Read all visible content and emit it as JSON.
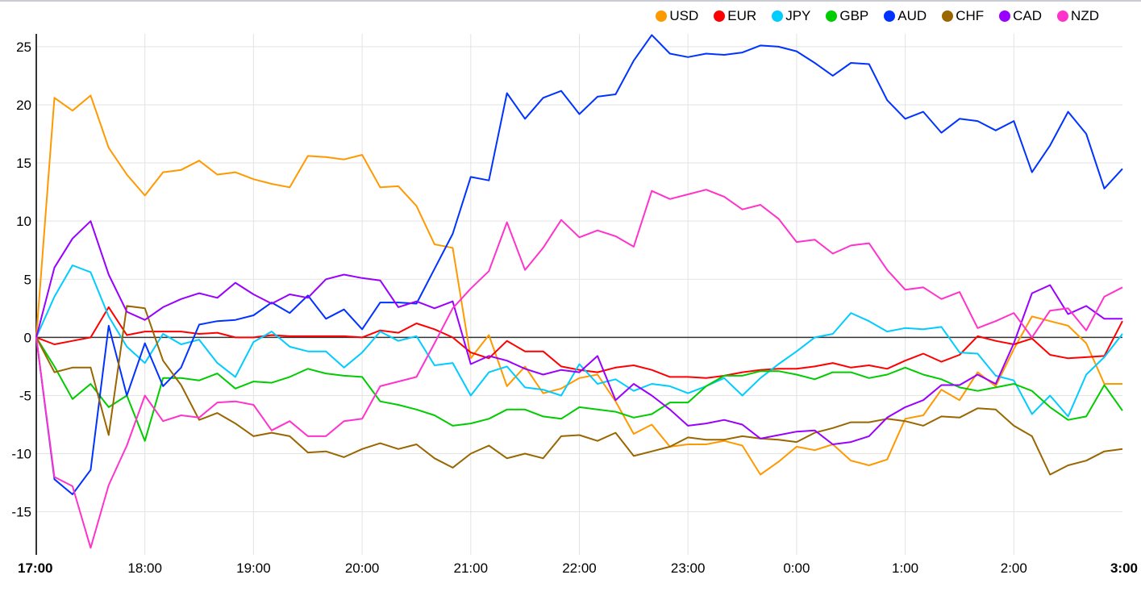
{
  "chart_data": {
    "type": "line",
    "title": "",
    "xlabel": "",
    "ylabel": "",
    "ylim": [
      -18.7,
      26.1
    ],
    "xlim_minutes": [
      0,
      600
    ],
    "step_minutes": 10,
    "grid": true,
    "legend_position": "top-right",
    "yticks": [
      -15,
      -10,
      -5,
      0,
      5,
      10,
      15,
      20,
      25
    ],
    "ytick_labels": [
      "-15",
      "-10",
      "-5",
      "0",
      "5",
      "10",
      "15",
      "20",
      "25"
    ],
    "xticks": [
      {
        "label": "17:00",
        "minute": 0,
        "bold": true
      },
      {
        "label": "18:00",
        "minute": 60
      },
      {
        "label": "19:00",
        "minute": 120
      },
      {
        "label": "20:00",
        "minute": 180
      },
      {
        "label": "21:00",
        "minute": 240
      },
      {
        "label": "22:00",
        "minute": 300
      },
      {
        "label": "23:00",
        "minute": 360
      },
      {
        "label": "0:00",
        "minute": 420
      },
      {
        "label": "1:00",
        "minute": 480
      },
      {
        "label": "2:00",
        "minute": 540
      },
      {
        "label": "3:00",
        "minute": 600,
        "bold": true
      }
    ],
    "series": [
      {
        "name": "USD",
        "color": "#ff9900",
        "values": [
          0,
          20.6,
          19.5,
          20.8,
          16.3,
          14,
          12.2,
          14.2,
          14.4,
          15.2,
          14,
          14.2,
          13.6,
          13.2,
          12.9,
          15.6,
          15.5,
          15.3,
          15.7,
          12.9,
          13,
          11.3,
          8,
          7.7,
          -1.8,
          0.2,
          -4.2,
          -2.5,
          -4.8,
          -4.4,
          -3.5,
          -3.2,
          -5.5,
          -8.3,
          -7.5,
          -9.4,
          -9.2,
          -9.2,
          -8.9,
          -9.3,
          -11.8,
          -10.7,
          -9.4,
          -9.7,
          -9.2,
          -10.6,
          -11,
          -10.5,
          -7,
          -6.7,
          -4.5,
          -5.4,
          -3,
          -4.2,
          -1,
          1.8,
          1.4,
          1,
          -0.5,
          -4,
          -4
        ]
      },
      {
        "name": "EUR",
        "color": "#ff0000",
        "values": [
          0,
          -0.6,
          -0.3,
          0,
          2.6,
          0.2,
          0.5,
          0.5,
          0.5,
          0.3,
          0.4,
          0,
          0,
          0.2,
          0.1,
          0.1,
          0.1,
          0.1,
          0,
          0.6,
          0.4,
          1.2,
          0.7,
          0,
          -1.3,
          -1.8,
          -0.3,
          -1.2,
          -1.2,
          -2.5,
          -2.8,
          -3,
          -2.6,
          -2.4,
          -2.8,
          -3.4,
          -3.4,
          -3.5,
          -3.3,
          -3,
          -2.8,
          -2.7,
          -2.7,
          -2.5,
          -2.2,
          -2.6,
          -2.4,
          -2.7,
          -2,
          -1.4,
          -2.1,
          -1.5,
          0.1,
          -0.3,
          -0.6,
          -0.1,
          -1.5,
          -1.8,
          -1.7,
          -1.6,
          1.4
        ]
      },
      {
        "name": "JPY",
        "color": "#00ccff",
        "values": [
          0,
          3.5,
          6.2,
          5.6,
          1.8,
          -0.8,
          -2.2,
          0.3,
          -0.6,
          -0.2,
          -2.2,
          -3.4,
          -0.4,
          0.5,
          -0.8,
          -1.2,
          -1.2,
          -2.6,
          -1.3,
          0.5,
          -0.3,
          0.1,
          -2.4,
          -2.2,
          -5,
          -3,
          -2.5,
          -4.3,
          -4.5,
          -5,
          -2.3,
          -4,
          -3.6,
          -4.6,
          -4,
          -4.2,
          -4.8,
          -4.2,
          -3.5,
          -5,
          -3.5,
          -2.3,
          -1.2,
          0,
          0.3,
          2.1,
          1.4,
          0.5,
          0.8,
          0.7,
          0.9,
          -1.3,
          -1.4,
          -3.3,
          -3.7,
          -6.6,
          -5,
          -6.8,
          -3.2,
          -1.7,
          0.3
        ]
      },
      {
        "name": "GBP",
        "color": "#00cc00",
        "values": [
          0,
          -2.5,
          -5.3,
          -4,
          -6,
          -5,
          -8.9,
          -3.5,
          -3.5,
          -3.7,
          -3.1,
          -4.4,
          -3.8,
          -3.9,
          -3.4,
          -2.7,
          -3.1,
          -3.3,
          -3.4,
          -5.5,
          -5.8,
          -6.2,
          -6.7,
          -7.6,
          -7.4,
          -7,
          -6.2,
          -6.2,
          -6.8,
          -7,
          -6,
          -6.2,
          -6.4,
          -6.9,
          -6.6,
          -5.6,
          -5.6,
          -4.2,
          -3.3,
          -3.3,
          -2.9,
          -2.9,
          -3.2,
          -3.6,
          -3,
          -3,
          -3.5,
          -3.2,
          -2.6,
          -3.2,
          -3.6,
          -4.3,
          -4.6,
          -4.3,
          -4,
          -4.6,
          -6,
          -7.1,
          -6.8,
          -4.1,
          -6.3
        ]
      },
      {
        "name": "AUD",
        "color": "#0033ff",
        "values": [
          0,
          -12.2,
          -13.5,
          -11.4,
          1,
          -5,
          -0.5,
          -4.2,
          -2.6,
          1.1,
          1.4,
          1.5,
          1.9,
          3,
          2.1,
          3.6,
          1.6,
          2.4,
          0.7,
          3,
          3,
          2.9,
          5.9,
          8.9,
          13.8,
          13.5,
          21,
          18.8,
          20.6,
          21.2,
          19.2,
          20.7,
          20.9,
          23.8,
          26,
          24.4,
          24.1,
          24.4,
          24.3,
          24.5,
          25.1,
          25,
          24.6,
          23.6,
          22.5,
          23.6,
          23.5,
          20.4,
          18.8,
          19.4,
          17.6,
          18.8,
          18.6,
          17.8,
          18.6,
          14.2,
          16.5,
          19.4,
          17.5,
          12.8,
          14.5
        ]
      },
      {
        "name": "CHF",
        "color": "#996600",
        "values": [
          0,
          -3,
          -2.6,
          -2.6,
          -8.4,
          2.7,
          2.5,
          -2,
          -4.1,
          -7.1,
          -6.5,
          -7.4,
          -8.5,
          -8.2,
          -8.5,
          -9.9,
          -9.8,
          -10.3,
          -9.6,
          -9.1,
          -9.6,
          -9.2,
          -10.4,
          -11.2,
          -10,
          -9.3,
          -10.4,
          -10,
          -10.4,
          -8.5,
          -8.4,
          -8.9,
          -8.2,
          -10.2,
          -9.8,
          -9.4,
          -8.6,
          -8.8,
          -8.8,
          -8.5,
          -8.7,
          -8.8,
          -9,
          -8.2,
          -7.8,
          -7.3,
          -7.3,
          -7,
          -7.2,
          -7.6,
          -6.8,
          -6.9,
          -6.1,
          -6.2,
          -7.6,
          -8.5,
          -11.8,
          -11,
          -10.6,
          -9.8,
          -9.6
        ]
      },
      {
        "name": "CAD",
        "color": "#9900ff",
        "values": [
          0,
          6,
          8.5,
          10,
          5.4,
          2.2,
          1.5,
          2.6,
          3.3,
          3.8,
          3.4,
          4.7,
          3.7,
          2.9,
          3.7,
          3.4,
          5,
          5.4,
          5.1,
          4.9,
          2.6,
          3.1,
          2.5,
          3.1,
          -2.3,
          -1.6,
          -2,
          -2.7,
          -3.2,
          -2.8,
          -3,
          -1.6,
          -5.4,
          -4,
          -5,
          -6.2,
          -7.6,
          -7.4,
          -7.1,
          -7.5,
          -8.7,
          -8.4,
          -8.1,
          -8,
          -9.2,
          -9,
          -8.5,
          -6.9,
          -6,
          -5.4,
          -4.1,
          -4.1,
          -3.2,
          -4,
          -0.5,
          3.8,
          4.5,
          2,
          2.7,
          1.6,
          1.6
        ]
      },
      {
        "name": "NZD",
        "color": "#ff33cc",
        "values": [
          0,
          -12,
          -12.8,
          -18.1,
          -12.7,
          -9.3,
          -5,
          -7.2,
          -6.7,
          -6.9,
          -5.6,
          -5.5,
          -5.8,
          -8,
          -7.2,
          -8.5,
          -8.5,
          -7.2,
          -7,
          -4.2,
          -3.8,
          -3.4,
          -0.5,
          2.5,
          4.2,
          5.7,
          9.9,
          5.8,
          7.7,
          10.1,
          8.6,
          9.2,
          8.7,
          7.8,
          12.6,
          11.9,
          12.3,
          12.7,
          12.1,
          11,
          11.4,
          10.2,
          8.2,
          8.4,
          7.2,
          7.9,
          8.1,
          5.8,
          4.1,
          4.3,
          3.3,
          3.9,
          0.8,
          1.4,
          2.1,
          0,
          2.3,
          2.5,
          0.6,
          3.5,
          4.3
        ]
      }
    ]
  }
}
